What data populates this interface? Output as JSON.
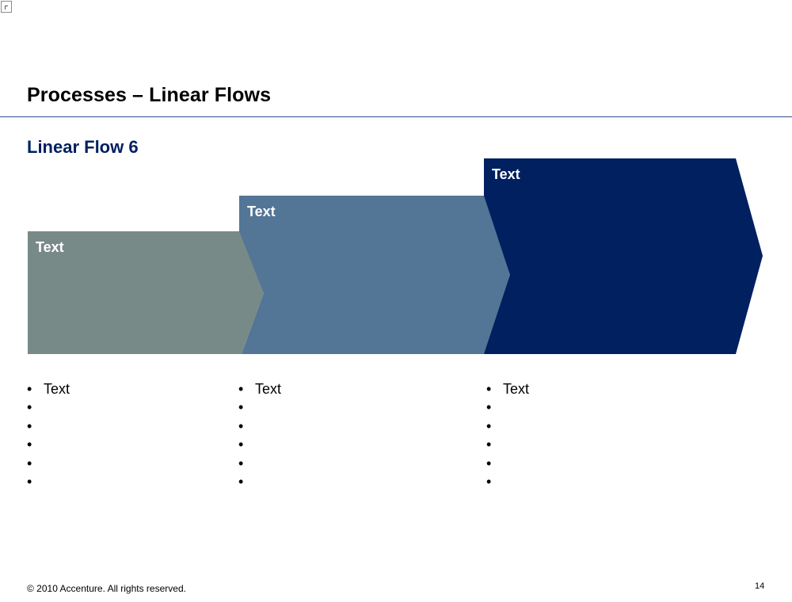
{
  "slide": {
    "title": "Processes – Linear Flows",
    "subtitle": "Linear Flow 6",
    "footer": "© 2010 Accenture. All rights reserved.",
    "page_number": "14"
  },
  "steps": [
    {
      "label": "Text",
      "color": "#788a87",
      "bullets": [
        "Text",
        "",
        "",
        "",
        "",
        ""
      ]
    },
    {
      "label": "Text",
      "color": "#537596",
      "bullets": [
        "Text",
        "",
        "",
        "",
        "",
        ""
      ]
    },
    {
      "label": "Text",
      "color": "#002060",
      "bullets": [
        "Text",
        "",
        "",
        "",
        "",
        ""
      ]
    }
  ],
  "colors": {
    "title_rule": "#2f4c8a",
    "subtitle": "#002060"
  }
}
